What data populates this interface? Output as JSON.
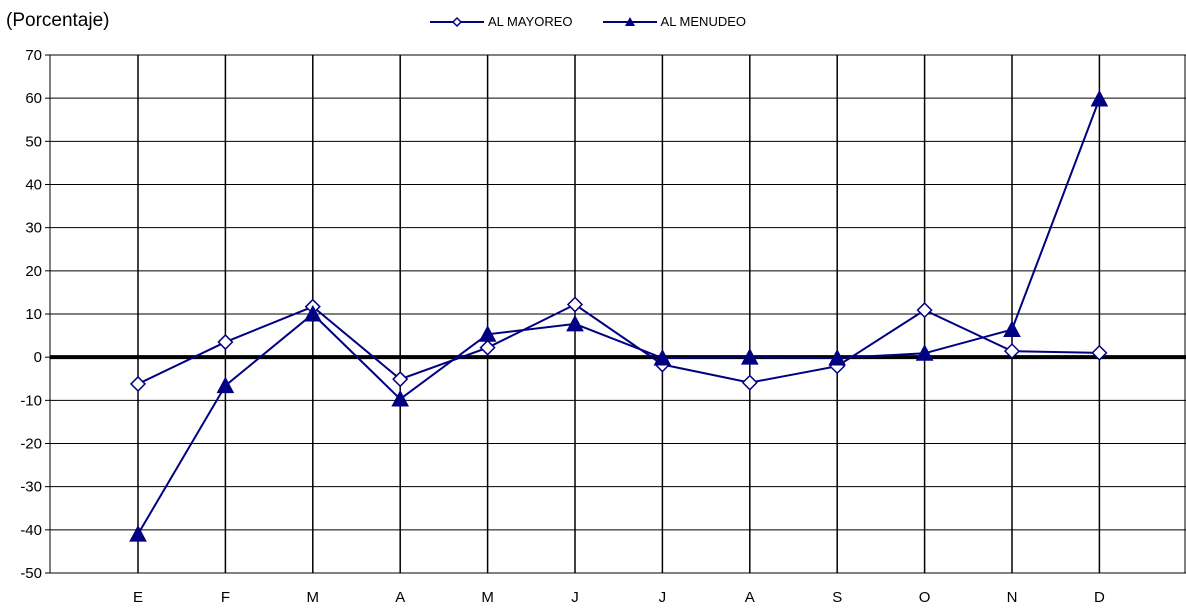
{
  "chart_data": {
    "type": "line",
    "unit_label": "(Porcentaje)",
    "categories": [
      "E",
      "F",
      "M",
      "A",
      "M",
      "J",
      "J",
      "A",
      "S",
      "O",
      "N",
      "D"
    ],
    "ylim": [
      -50,
      70
    ],
    "yticks": [
      -50,
      -40,
      -30,
      -20,
      -10,
      0,
      10,
      20,
      30,
      40,
      50,
      60,
      70
    ],
    "grid": true,
    "legend_position": "top-center",
    "series": [
      {
        "name": "AL MAYOREO",
        "marker": "open-diamond",
        "color": "#000080",
        "values": [
          -6.2,
          3.5,
          11.7,
          -5.1,
          2.2,
          12.2,
          -1.7,
          -5.9,
          -2.1,
          10.9,
          1.4,
          1.0
        ]
      },
      {
        "name": "AL MENUDEO",
        "marker": "filled-triangle",
        "color": "#000080",
        "values": [
          -41.0,
          -6.6,
          10.0,
          -9.7,
          5.3,
          7.7,
          -0.2,
          0.0,
          -0.2,
          0.9,
          6.4,
          59.8
        ]
      }
    ]
  }
}
